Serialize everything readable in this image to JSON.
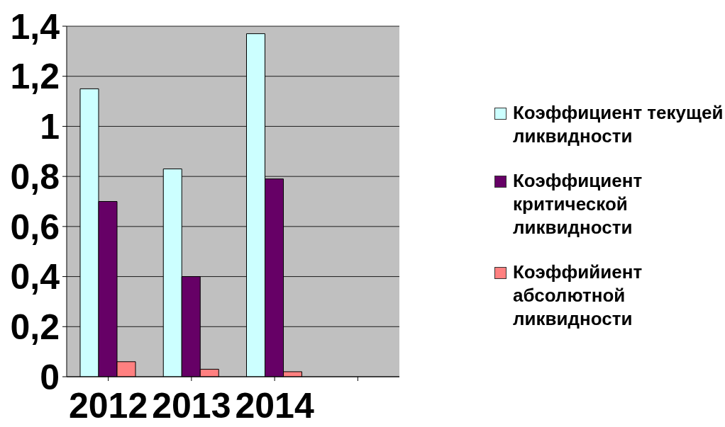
{
  "chart_data": {
    "type": "bar",
    "categories": [
      "2012",
      "2013",
      "2014",
      null
    ],
    "series": [
      {
        "name": "Коэффициент текущей ликвидности",
        "color": "#ccffff",
        "values": [
          1.15,
          0.83,
          1.37,
          null
        ]
      },
      {
        "name": "Коэффициент критической ликвидности",
        "color": "#660066",
        "values": [
          0.7,
          0.4,
          0.79,
          null
        ]
      },
      {
        "name": "Коэффийиент абсолютной ликвидности",
        "color": "#ff8080",
        "values": [
          0.06,
          0.03,
          0.02,
          null
        ]
      }
    ],
    "ylim": [
      0,
      1.4
    ],
    "yticks": [
      {
        "value": 0,
        "label": "0"
      },
      {
        "value": 0.2,
        "label": "0,2"
      },
      {
        "value": 0.4,
        "label": "0,4"
      },
      {
        "value": 0.6,
        "label": "0,6"
      },
      {
        "value": 0.8,
        "label": "0,8"
      },
      {
        "value": 1,
        "label": "1"
      },
      {
        "value": 1.2,
        "label": "1,2"
      },
      {
        "value": 1.4,
        "label": "1,4"
      }
    ],
    "grid": "y",
    "legend": "right"
  }
}
